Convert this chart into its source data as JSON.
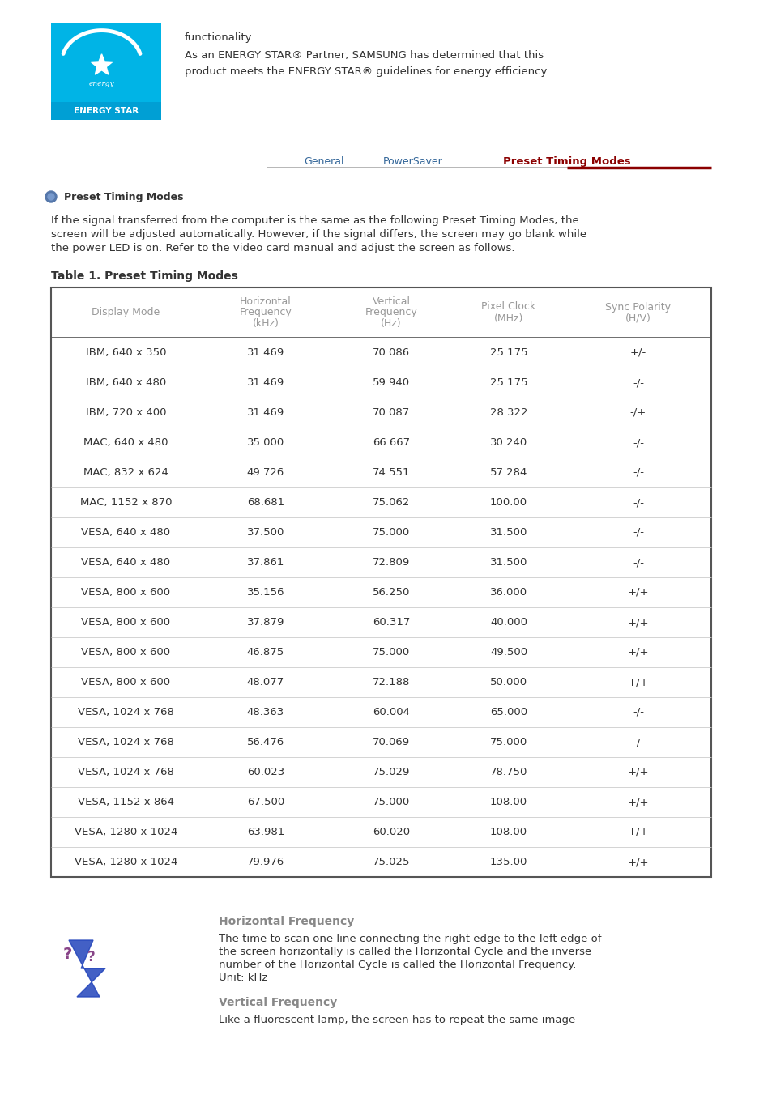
{
  "background_color": "#ffffff",
  "energy_star_text1": "functionality.",
  "energy_star_text2_line1": "As an ENERGY STAR® Partner, SAMSUNG has determined that this",
  "energy_star_text2_line2": "product meets the ENERGY STAR® guidelines for energy efficiency.",
  "nav_items": [
    "General",
    "PowerSaver",
    "Preset Timing Modes"
  ],
  "nav_active": "Preset Timing Modes",
  "nav_color": "#336699",
  "nav_active_color": "#8b0000",
  "section_title": "Preset Timing Modes",
  "intro_lines": [
    "If the signal transferred from the computer is the same as the following Preset Timing Modes, the",
    "screen will be adjusted automatically. However, if the signal differs, the screen may go blank while",
    "the power LED is on. Refer to the video card manual and adjust the screen as follows."
  ],
  "table_title": "Table 1. Preset Timing Modes",
  "col_headers": [
    "Display Mode",
    "Horizontal\nFrequency\n(kHz)",
    "Vertical\nFrequency\n(Hz)",
    "Pixel Clock\n(MHz)",
    "Sync Polarity\n(H/V)"
  ],
  "table_data": [
    [
      "IBM, 640 x 350",
      "31.469",
      "70.086",
      "25.175",
      "+/-"
    ],
    [
      "IBM, 640 x 480",
      "31.469",
      "59.940",
      "25.175",
      "-/-"
    ],
    [
      "IBM, 720 x 400",
      "31.469",
      "70.087",
      "28.322",
      "-/+"
    ],
    [
      "MAC, 640 x 480",
      "35.000",
      "66.667",
      "30.240",
      "-/-"
    ],
    [
      "MAC, 832 x 624",
      "49.726",
      "74.551",
      "57.284",
      "-/-"
    ],
    [
      "MAC, 1152 x 870",
      "68.681",
      "75.062",
      "100.00",
      "-/-"
    ],
    [
      "VESA, 640 x 480",
      "37.500",
      "75.000",
      "31.500",
      "-/-"
    ],
    [
      "VESA, 640 x 480",
      "37.861",
      "72.809",
      "31.500",
      "-/-"
    ],
    [
      "VESA, 800 x 600",
      "35.156",
      "56.250",
      "36.000",
      "+/+"
    ],
    [
      "VESA, 800 x 600",
      "37.879",
      "60.317",
      "40.000",
      "+/+"
    ],
    [
      "VESA, 800 x 600",
      "46.875",
      "75.000",
      "49.500",
      "+/+"
    ],
    [
      "VESA, 800 x 600",
      "48.077",
      "72.188",
      "50.000",
      "+/+"
    ],
    [
      "VESA, 1024 x 768",
      "48.363",
      "60.004",
      "65.000",
      "-/-"
    ],
    [
      "VESA, 1024 x 768",
      "56.476",
      "70.069",
      "75.000",
      "-/-"
    ],
    [
      "VESA, 1024 x 768",
      "60.023",
      "75.029",
      "78.750",
      "+/+"
    ],
    [
      "VESA, 1152 x 864",
      "67.500",
      "75.000",
      "108.00",
      "+/+"
    ],
    [
      "VESA, 1280 x 1024",
      "63.981",
      "60.020",
      "108.00",
      "+/+"
    ],
    [
      "VESA, 1280 x 1024",
      "79.976",
      "75.025",
      "135.00",
      "+/+"
    ]
  ],
  "horiz_freq_title": "Horizontal Frequency",
  "horiz_freq_lines": [
    "The time to scan one line connecting the right edge to the left edge of",
    "the screen horizontally is called the Horizontal Cycle and the inverse",
    "number of the Horizontal Cycle is called the Horizontal Frequency.",
    "Unit: kHz"
  ],
  "vert_freq_title": "Vertical Frequency",
  "vert_freq_text": "Like a fluorescent lamp, the screen has to repeat the same image",
  "text_color": "#333333",
  "header_gray": "#999999",
  "table_border_color": "#555555",
  "row_sep_color": "#cccccc",
  "logo_blue": "#00b4e6",
  "logo_label_blue": "#009fd4"
}
